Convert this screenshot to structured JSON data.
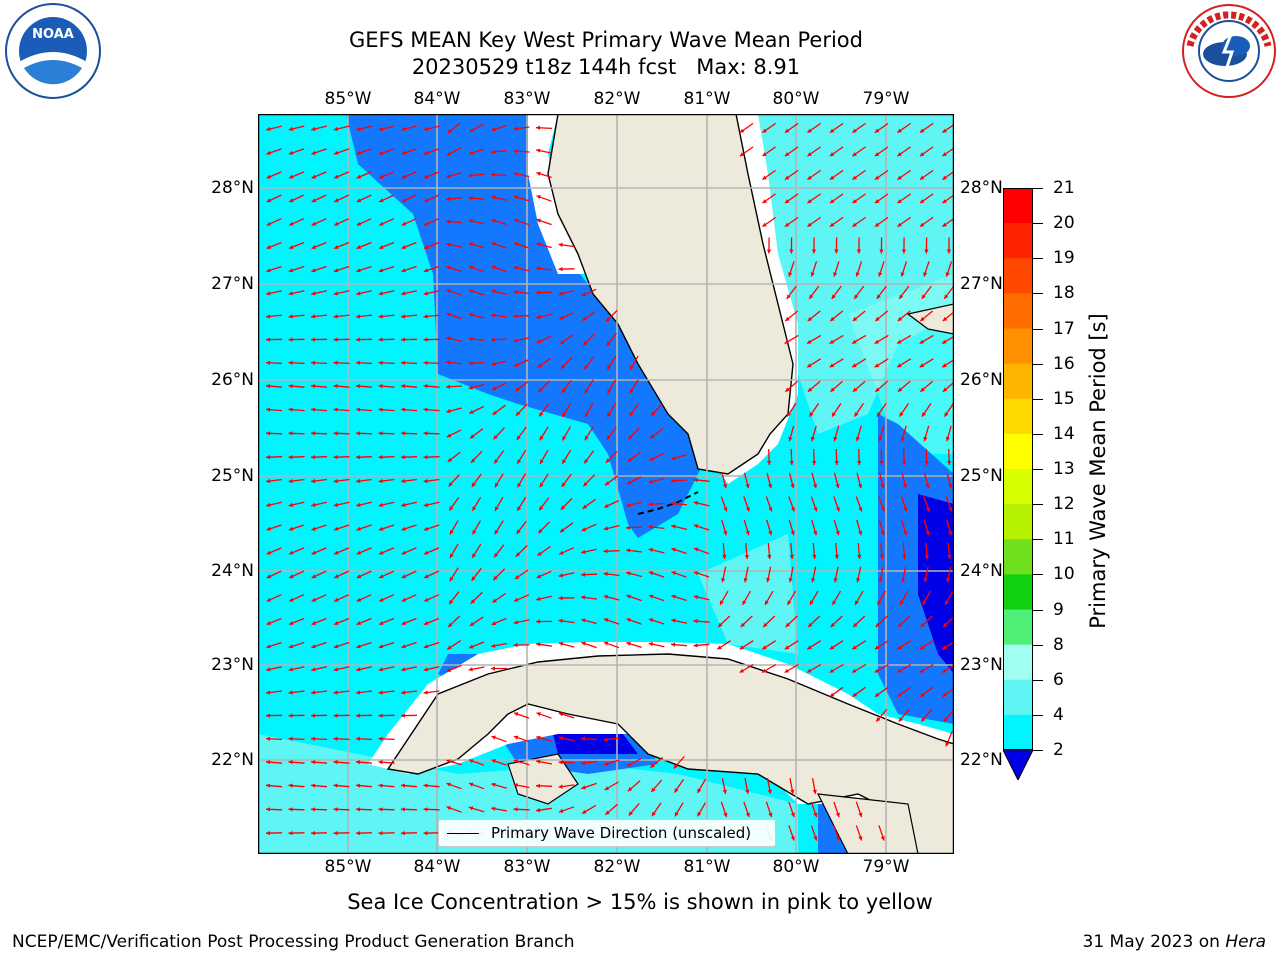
{
  "title_line1": "GEFS MEAN Key West Primary Wave Mean Period",
  "title_line2": "20230529 t18z 144h fcst   Max: 8.91",
  "lon_labels": [
    "85°W",
    "84°W",
    "83°W",
    "82°W",
    "81°W",
    "80°W",
    "79°W"
  ],
  "lat_labels": [
    "28°N",
    "27°N",
    "26°N",
    "25°N",
    "24°N",
    "23°N",
    "22°N"
  ],
  "colorbar": {
    "label": "Primary Wave Mean Period [s]",
    "ticks": [
      "21",
      "20",
      "19",
      "18",
      "17",
      "16",
      "15",
      "14",
      "13",
      "12",
      "11",
      "10",
      "9",
      "8",
      "6",
      "4",
      "2"
    ],
    "colors": [
      "#ff0000",
      "#ff2400",
      "#ff4800",
      "#ff6c00",
      "#ff9000",
      "#ffb400",
      "#ffd800",
      "#ffff00",
      "#d8ff00",
      "#b4f000",
      "#6ee01e",
      "#10d010",
      "#50f078",
      "#a0fff0",
      "#5ff5f5",
      "#00f5ff",
      "#1478ff",
      "#0000e6"
    ]
  },
  "legend_label": "Primary Wave Direction (unscaled)",
  "note": "Sea Ice Concentration > 15% is shown in pink to yellow",
  "footer_left": "NCEP/EMC/Verification Post Processing Product Generation Branch",
  "footer_date": "31 May 2023 on",
  "footer_host": "Hera",
  "logos": {
    "left": "NOAA",
    "right": "NATIONAL WEATHER SERVICE"
  },
  "colors": {
    "land": "#eeeadb",
    "water_cyan": "#00f5ff",
    "water_light": "#5ff5f5",
    "water_blue": "#1478ff",
    "water_dark": "#0000e6",
    "arrow": "#ff0000",
    "grid": "#b4b4b4"
  }
}
